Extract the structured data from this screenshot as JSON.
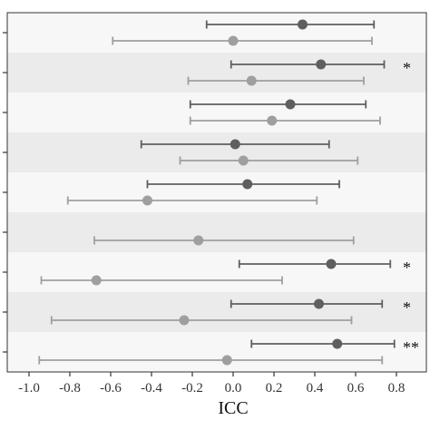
{
  "chart_data": {
    "type": "scatter",
    "subtype": "forest-plot",
    "title": "",
    "xlabel": "ICC",
    "ylabel": "",
    "xlim": [
      -1.1,
      0.85
    ],
    "x_ticks": [
      -1.0,
      -0.8,
      -0.6,
      -0.4,
      -0.2,
      0.0,
      0.2,
      0.4,
      0.6,
      0.8
    ],
    "x_tick_labels": [
      "-1.0",
      "-0.8",
      "-0.6",
      "-0.4",
      "-0.2",
      "0.0",
      "0.2",
      "0.4",
      "0.6",
      "0.8"
    ],
    "grid": false,
    "legend": "none",
    "colors": {
      "dark_series": "#5f5f5f",
      "light_series": "#9f9f9f",
      "band_light": "#f7f7f7",
      "band_dark": "#ebebeb",
      "axis": "#333333"
    },
    "rows": [
      {
        "significance": "",
        "dark": {
          "estimate": 0.34,
          "lower": -0.13,
          "upper": 0.69
        },
        "light": {
          "estimate": 0.0,
          "lower": -0.59,
          "upper": 0.68
        }
      },
      {
        "significance": "*",
        "dark": {
          "estimate": 0.43,
          "lower": -0.01,
          "upper": 0.74
        },
        "light": {
          "estimate": 0.09,
          "lower": -0.22,
          "upper": 0.64
        }
      },
      {
        "significance": "",
        "dark": {
          "estimate": 0.28,
          "lower": -0.21,
          "upper": 0.65
        },
        "light": {
          "estimate": 0.19,
          "lower": -0.21,
          "upper": 0.72
        }
      },
      {
        "significance": "",
        "dark": {
          "estimate": 0.01,
          "lower": -0.45,
          "upper": 0.47
        },
        "light": {
          "estimate": 0.05,
          "lower": -0.26,
          "upper": 0.61
        }
      },
      {
        "significance": "",
        "dark": {
          "estimate": 0.07,
          "lower": -0.42,
          "upper": 0.52
        },
        "light": {
          "estimate": -0.42,
          "lower": -0.81,
          "upper": 0.41
        }
      },
      {
        "significance": "",
        "dark": null,
        "light": {
          "estimate": -0.17,
          "lower": -0.68,
          "upper": 0.59
        }
      },
      {
        "significance": "*",
        "dark": {
          "estimate": 0.48,
          "lower": 0.03,
          "upper": 0.77
        },
        "light": {
          "estimate": -0.67,
          "lower": -0.94,
          "upper": 0.24
        }
      },
      {
        "significance": "*",
        "dark": {
          "estimate": 0.42,
          "lower": -0.01,
          "upper": 0.73
        },
        "light": {
          "estimate": -0.24,
          "lower": -0.89,
          "upper": 0.58
        }
      },
      {
        "significance": "**",
        "dark": {
          "estimate": 0.51,
          "lower": 0.09,
          "upper": 0.79
        },
        "light": {
          "estimate": -0.03,
          "lower": -0.95,
          "upper": 0.73
        }
      }
    ]
  }
}
